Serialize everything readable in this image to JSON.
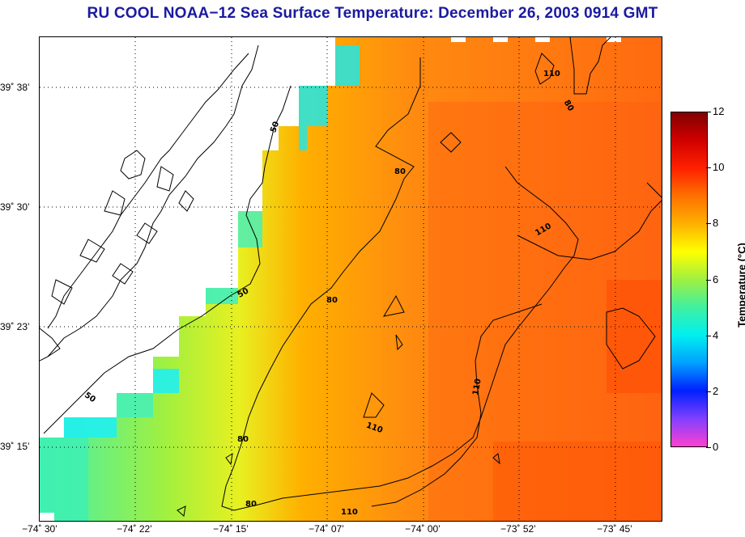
{
  "title": "RU COOL  NOAA−12  Sea Surface Temperature:  December 26, 2003 0914 GMT",
  "map": {
    "lat_labels": [
      {
        "text": "39˚ 38’",
        "lat": 39.6333
      },
      {
        "text": "39˚ 30’",
        "lat": 39.5
      },
      {
        "text": "39˚ 23’",
        "lat": 39.3833
      },
      {
        "text": "39˚ 15’",
        "lat": 39.25
      }
    ],
    "lon_labels": [
      {
        "text": "−74˚ 30’",
        "lon": -74.5
      },
      {
        "text": "−74˚ 22’",
        "lon": -74.3667
      },
      {
        "text": "−74˚ 15’",
        "lon": -74.25
      },
      {
        "text": "−74˚ 07’",
        "lon": -74.1167
      },
      {
        "text": "−74˚ 00’",
        "lon": -74.0
      },
      {
        "text": "−73˚ 52’",
        "lon": -73.8667
      },
      {
        "text": "−73˚ 45’",
        "lon": -73.75
      }
    ],
    "contour_labels": [
      "50",
      "80",
      "110"
    ]
  },
  "colorbar": {
    "label": "Temperature (°C)",
    "ticks": [
      "12",
      "10",
      "8",
      "6",
      "4",
      "2",
      "0"
    ],
    "range": [
      0,
      12
    ],
    "colors": [
      "#ff40d0",
      "#8040ff",
      "#0020ff",
      "#00a0ff",
      "#00f0f0",
      "#40f0a0",
      "#a0f040",
      "#ffff00",
      "#ffb000",
      "#ff7000",
      "#ff2000",
      "#d00000",
      "#800000"
    ]
  }
}
